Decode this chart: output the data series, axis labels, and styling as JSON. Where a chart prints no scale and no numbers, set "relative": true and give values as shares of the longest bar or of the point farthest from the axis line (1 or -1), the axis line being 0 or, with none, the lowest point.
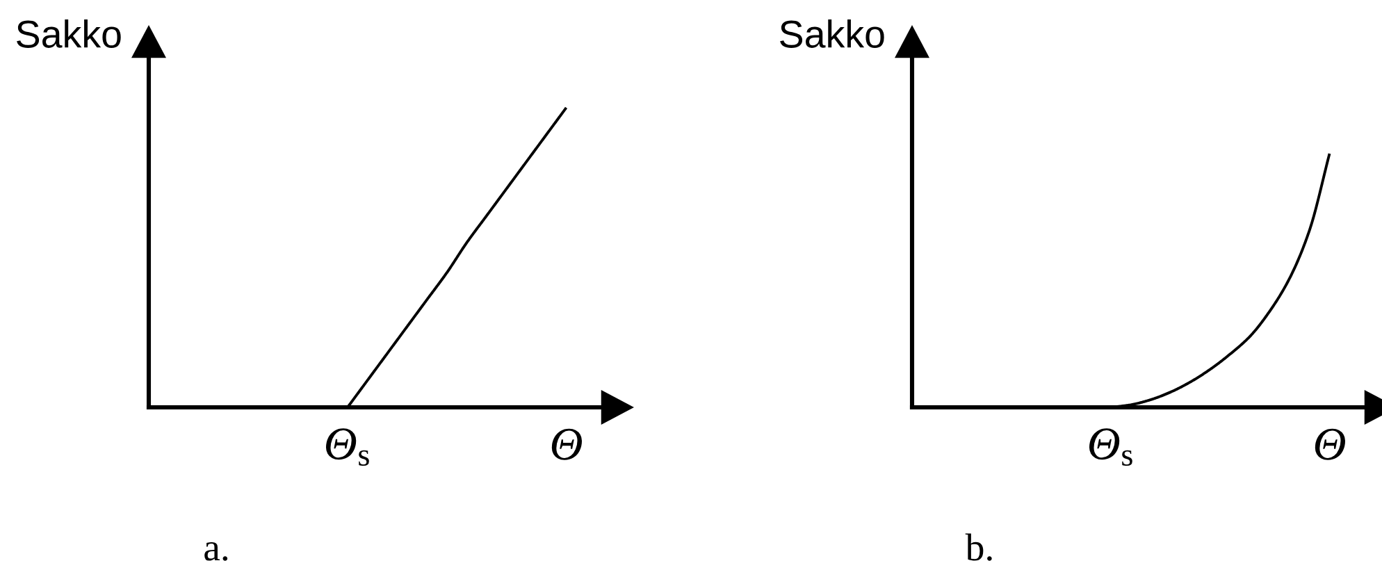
{
  "chart_data": [
    {
      "type": "line",
      "relative": true,
      "ylabel": "Sakko",
      "categories": [
        null,
        null,
        null,
        null,
        null,
        null,
        null,
        null,
        null,
        "Θ$_{s}$",
        null,
        null,
        null,
        null,
        null,
        null,
        null,
        null,
        null,
        null,
        "Θ"
      ],
      "series": [
        {
          "color": "#000000",
          "values": [
            null,
            null,
            null,
            null,
            null,
            null,
            null,
            null,
            null,
            0,
            0.09,
            0.18,
            0.27,
            0.36,
            0.45,
            0.55,
            0.64,
            0.73,
            0.82,
            0.91,
            1
          ]
        }
      ],
      "annotations": [
        "a."
      ]
    },
    {
      "type": "line",
      "relative": true,
      "ylabel": "Sakko",
      "categories": [
        null,
        null,
        null,
        null,
        null,
        null,
        null,
        null,
        null,
        "Θ$_{s}$",
        null,
        null,
        null,
        null,
        null,
        null,
        null,
        null,
        null,
        null,
        "Θ"
      ],
      "series": [
        {
          "color": "#000000",
          "values": [
            null,
            null,
            null,
            null,
            null,
            null,
            null,
            null,
            null,
            0,
            0.01,
            0.03,
            0.06,
            0.1,
            0.15,
            0.21,
            0.28,
            0.38,
            0.51,
            0.7,
            1
          ]
        }
      ],
      "annotations": [
        "b."
      ]
    }
  ]
}
